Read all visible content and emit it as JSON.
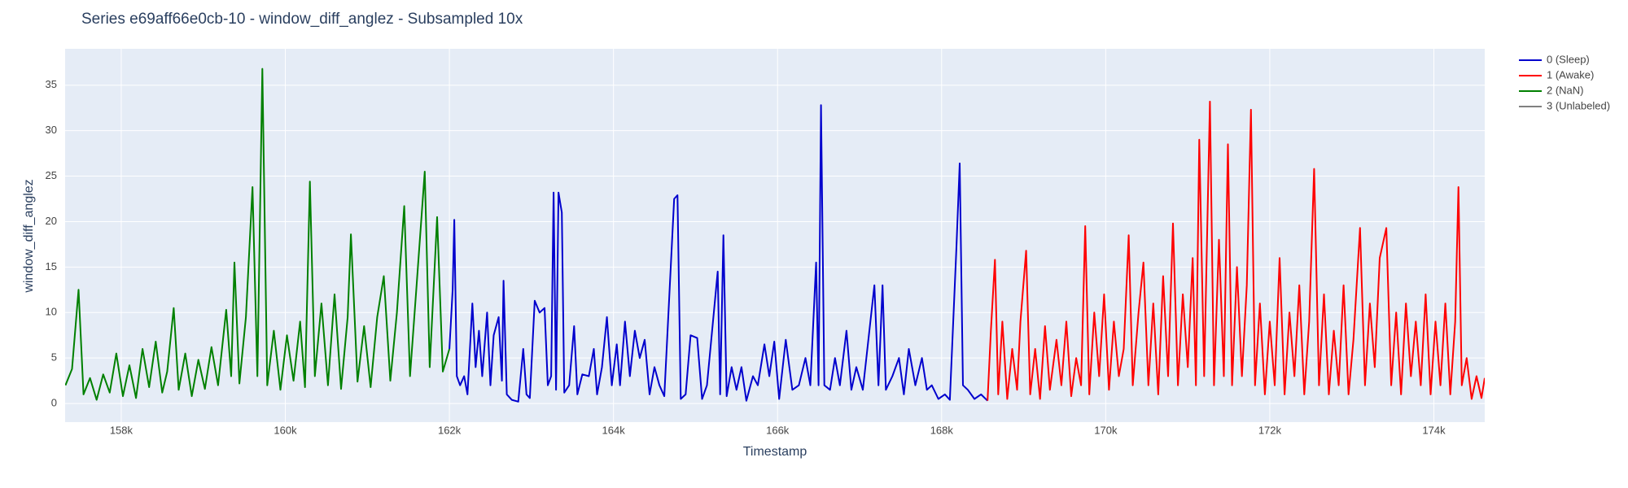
{
  "chart_data": {
    "type": "line",
    "title": "Series e69aff66e0cb-10 - window_diff_anglez - Subsampled 10x",
    "xlabel": "Timestamp",
    "ylabel": "window_diff_anglez",
    "grid": true,
    "xlim": [
      157316,
      174620
    ],
    "ylim": [
      -2.05,
      39
    ],
    "xticks": [
      {
        "value": 158000,
        "label": "158k"
      },
      {
        "value": 160000,
        "label": "160k"
      },
      {
        "value": 162000,
        "label": "162k"
      },
      {
        "value": 164000,
        "label": "164k"
      },
      {
        "value": 166000,
        "label": "166k"
      },
      {
        "value": 168000,
        "label": "168k"
      },
      {
        "value": 170000,
        "label": "170k"
      },
      {
        "value": 172000,
        "label": "172k"
      },
      {
        "value": 174000,
        "label": "174k"
      }
    ],
    "yticks": [
      0,
      5,
      10,
      15,
      20,
      25,
      30,
      35
    ],
    "series": [
      {
        "name": "0 (Sleep)",
        "color": "#0000cd",
        "x": [
          162000,
          162040,
          162060,
          162090,
          162130,
          162180,
          162220,
          162280,
          162320,
          162360,
          162400,
          162460,
          162500,
          162540,
          162600,
          162640,
          162660,
          162700,
          162760,
          162840,
          162900,
          162940,
          162980,
          163040,
          163100,
          163160,
          163200,
          163240,
          163270,
          163300,
          163330,
          163370,
          163400,
          163460,
          163520,
          163560,
          163620,
          163700,
          163760,
          163800,
          163860,
          163920,
          163980,
          164040,
          164080,
          164140,
          164200,
          164260,
          164320,
          164380,
          164440,
          164500,
          164560,
          164620,
          164740,
          164780,
          164820,
          164880,
          164940,
          165020,
          165080,
          165140,
          165270,
          165300,
          165340,
          165380,
          165440,
          165500,
          165560,
          165620,
          165700,
          165760,
          165840,
          165900,
          165960,
          166020,
          166100,
          166180,
          166260,
          166340,
          166400,
          166470,
          166500,
          166530,
          166570,
          166640,
          166700,
          166760,
          166840,
          166900,
          166960,
          167040,
          167180,
          167230,
          167280,
          167320,
          167400,
          167480,
          167540,
          167600,
          167680,
          167760,
          167820,
          167880,
          167960,
          168040,
          168100,
          168180,
          168220,
          168260,
          168320,
          168400,
          168480,
          168560
        ],
        "values": [
          6,
          12.5,
          20.2,
          3,
          2,
          3,
          1,
          11,
          4,
          8,
          3,
          10,
          2,
          7.5,
          9.5,
          2.5,
          13.5,
          1,
          0.4,
          0.2,
          6,
          1,
          0.6,
          11.3,
          10,
          10.5,
          2,
          3,
          23.2,
          1.5,
          23.2,
          21,
          1.2,
          2,
          8.5,
          1,
          3.2,
          3,
          6,
          1,
          4,
          9.5,
          2,
          6.5,
          2,
          9,
          3,
          8,
          5,
          7,
          1,
          4,
          2,
          0.8,
          22.5,
          22.9,
          0.5,
          1,
          7.5,
          7.2,
          0.5,
          2,
          14.5,
          1,
          18.5,
          0.8,
          4,
          1.5,
          4,
          0.3,
          3,
          2,
          6.5,
          3,
          6.8,
          0.5,
          7,
          1.5,
          2,
          5,
          2,
          15.5,
          2,
          32.8,
          2,
          1.5,
          5,
          2,
          8,
          1.5,
          4,
          1.5,
          13,
          2,
          13,
          1.5,
          3,
          5,
          1,
          6,
          2,
          5,
          1.5,
          2,
          0.5,
          1,
          0.4,
          17,
          26.4,
          2,
          1.5,
          0.5,
          1,
          0.3
        ]
      },
      {
        "name": "1 (Awake)",
        "color": "#ff0000",
        "x": [
          168560,
          168600,
          168650,
          168690,
          168740,
          168800,
          168860,
          168920,
          168960,
          169030,
          169080,
          169140,
          169200,
          169260,
          169320,
          169400,
          169460,
          169520,
          169580,
          169640,
          169700,
          169750,
          169800,
          169860,
          169920,
          169980,
          170040,
          170100,
          170160,
          170220,
          170280,
          170330,
          170400,
          170460,
          170520,
          170580,
          170640,
          170700,
          170760,
          170820,
          170880,
          170940,
          171000,
          171060,
          171100,
          171140,
          171200,
          171270,
          171320,
          171380,
          171440,
          171490,
          171540,
          171600,
          171660,
          171720,
          171770,
          171820,
          171880,
          171940,
          172000,
          172060,
          172120,
          172180,
          172240,
          172300,
          172360,
          172420,
          172480,
          172540,
          172600,
          172660,
          172720,
          172780,
          172840,
          172900,
          172960,
          173020,
          173100,
          173160,
          173220,
          173280,
          173340,
          173420,
          173480,
          173540,
          173600,
          173660,
          173720,
          173780,
          173840,
          173900,
          173960,
          174020,
          174080,
          174140,
          174200,
          174260,
          174300,
          174340,
          174400,
          174460,
          174520,
          174580,
          174620
        ],
        "values": [
          0.3,
          8,
          15.8,
          1,
          9,
          0.5,
          6,
          1.5,
          9,
          16.8,
          1,
          6,
          0.5,
          8.5,
          1.5,
          7,
          2,
          9,
          0.8,
          5,
          2,
          19.5,
          1,
          10,
          3,
          12,
          1.5,
          9,
          3,
          6,
          18.5,
          2,
          10,
          15.5,
          2,
          11,
          1,
          14,
          3,
          19.8,
          2,
          12,
          4,
          16,
          2,
          29,
          3,
          33.2,
          2,
          18,
          3,
          28.5,
          2,
          15,
          3,
          13,
          32.3,
          2,
          11,
          1,
          9,
          2,
          16,
          1,
          10,
          3,
          13,
          1,
          9,
          25.8,
          2,
          12,
          1,
          8,
          2,
          13,
          1,
          7,
          19.3,
          2,
          11,
          4,
          16,
          19.3,
          2,
          10,
          1,
          11,
          3,
          9,
          2,
          12,
          1,
          9,
          2,
          11,
          1,
          9,
          23.8,
          2,
          5,
          0.5,
          3,
          0.6,
          2.8
        ]
      },
      {
        "name": "2 (NaN)",
        "color": "#008000",
        "x": [
          157320,
          157400,
          157480,
          157540,
          157620,
          157700,
          157780,
          157860,
          157940,
          158020,
          158100,
          158180,
          158260,
          158340,
          158420,
          158500,
          158560,
          158640,
          158700,
          158780,
          158860,
          158940,
          159020,
          159100,
          159180,
          159280,
          159340,
          159380,
          159440,
          159520,
          159600,
          159660,
          159720,
          159780,
          159860,
          159940,
          160020,
          160100,
          160180,
          160240,
          160300,
          160360,
          160440,
          160520,
          160600,
          160680,
          160760,
          160800,
          160880,
          160960,
          161040,
          161120,
          161200,
          161280,
          161360,
          161450,
          161520,
          161600,
          161700,
          161760,
          161850,
          161920,
          162000
        ],
        "values": [
          2,
          3.8,
          12.5,
          1,
          2.8,
          0.4,
          3.2,
          1.2,
          5.5,
          0.8,
          4.2,
          0.6,
          6,
          1.8,
          6.8,
          1.2,
          3.5,
          10.5,
          1.5,
          5.5,
          0.8,
          4.8,
          1.6,
          6.2,
          2,
          10.3,
          3,
          15.5,
          2.2,
          9.5,
          23.8,
          3,
          36.8,
          2,
          8,
          1.5,
          7.5,
          2.5,
          9,
          1.8,
          24.4,
          3,
          11,
          2,
          12,
          1.6,
          9.5,
          18.6,
          2.4,
          8.5,
          1.8,
          9.5,
          14,
          2.5,
          10,
          21.7,
          3,
          13,
          25.5,
          4,
          20.5,
          3.5,
          6
        ]
      },
      {
        "name": "3 (Unlabeled)",
        "color": "#808080",
        "x": [],
        "values": []
      }
    ]
  }
}
